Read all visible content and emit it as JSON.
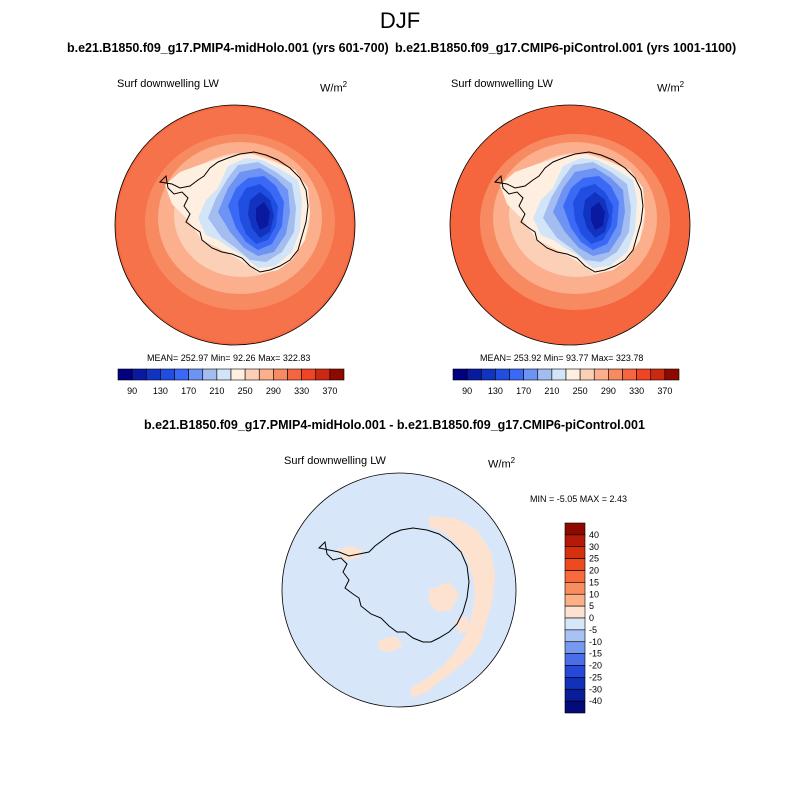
{
  "figure": {
    "season": "DJF",
    "left_title": "b.e21.B1850.f09_g17.PMIP4-midHolo.001 (yrs 601-700)",
    "right_title": "b.e21.B1850.f09_g17.CMIP6-piControl.001 (yrs 1001-1100)",
    "diff_title": "b.e21.B1850.f09_g17.PMIP4-midHolo.001 - b.e21.B1850.f09_g17.CMIP6-piControl.001"
  },
  "panels": {
    "left": {
      "variable": "Surf downwelling LW",
      "units_base": "W/m",
      "units_exp": "2",
      "stats": "MEAN= 252.97  Min=  92.26  Max= 322.83"
    },
    "right": {
      "variable": "Surf downwelling LW",
      "units_base": "W/m",
      "units_exp": "2",
      "stats": "MEAN= 253.92  Min=  93.77  Max= 323.78"
    },
    "diff": {
      "variable": "Surf downwelling LW",
      "units_base": "W/m",
      "units_exp": "2",
      "stats": "MIN =  -5.05 MAX =   2.43"
    }
  },
  "chart_data": [
    {
      "type": "heatmap",
      "title": "b.e21.B1850.f09_g17.PMIP4-midHolo.001 (yrs 601-700)",
      "variable": "Surf downwelling LW",
      "units": "W/m2",
      "projection": "south polar stereographic",
      "stats": {
        "mean": 252.97,
        "min": 92.26,
        "max": 322.83
      },
      "colorbar_ticks": [
        "90",
        "130",
        "170",
        "210",
        "250",
        "290",
        "330",
        "370"
      ],
      "colors": [
        "#000080",
        "#0a1aa0",
        "#1133c0",
        "#1f4ee0",
        "#3a6af5",
        "#6d93f5",
        "#a3bdf0",
        "#d2e4f7",
        "#ffefe0",
        "#fcd0b6",
        "#fbaf8c",
        "#f88a62",
        "#f5663e",
        "#f04524",
        "#cc2a10",
        "#8e0a00"
      ]
    },
    {
      "type": "heatmap",
      "title": "b.e21.B1850.f09_g17.CMIP6-piControl.001 (yrs 1001-1100)",
      "variable": "Surf downwelling LW",
      "units": "W/m2",
      "projection": "south polar stereographic",
      "stats": {
        "mean": 253.92,
        "min": 93.77,
        "max": 323.78
      },
      "colorbar_ticks": [
        "90",
        "130",
        "170",
        "210",
        "250",
        "290",
        "330",
        "370"
      ],
      "colors": [
        "#000080",
        "#0a1aa0",
        "#1133c0",
        "#1f4ee0",
        "#3a6af5",
        "#6d93f5",
        "#a3bdf0",
        "#d2e4f7",
        "#ffefe0",
        "#fcd0b6",
        "#fbaf8c",
        "#f88a62",
        "#f5663e",
        "#f04524",
        "#cc2a10",
        "#8e0a00"
      ]
    },
    {
      "type": "heatmap",
      "title": "b.e21.B1850.f09_g17.PMIP4-midHolo.001 - b.e21.B1850.f09_g17.CMIP6-piControl.001",
      "variable": "Surf downwelling LW",
      "units": "W/m2",
      "projection": "south polar stereographic",
      "stats": {
        "min": -5.05,
        "max": 2.43
      },
      "colorbar_ticks": [
        "40",
        "30",
        "25",
        "20",
        "15",
        "10",
        "5",
        "0",
        "-5",
        "-10",
        "-15",
        "-20",
        "-25",
        "-30",
        "-40"
      ],
      "colors": [
        "#8e0a00",
        "#b51a08",
        "#d6310f",
        "#ee4a22",
        "#f76a3c",
        "#fa8d5e",
        "#fcb088",
        "#fde3cf",
        "#d7e7f9",
        "#a8c2f3",
        "#7798f0",
        "#4a6ee8",
        "#2449d8",
        "#1230b8",
        "#0a1c99",
        "#030b7a"
      ]
    }
  ]
}
